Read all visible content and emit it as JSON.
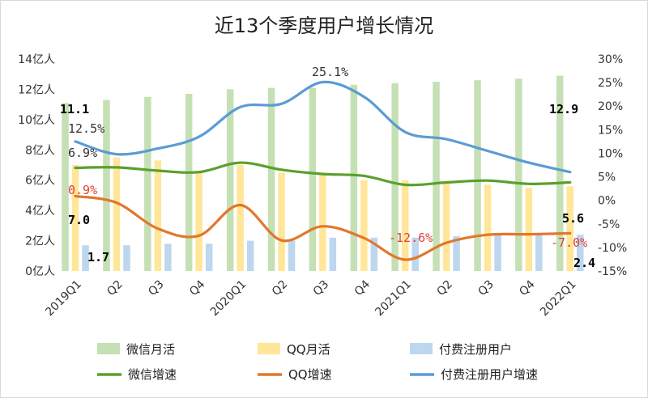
{
  "chart_data": {
    "type": "bar+line",
    "title": "近13个季度用户增长情况",
    "categories": [
      "2019Q1",
      "Q2",
      "Q3",
      "Q4",
      "2020Q1",
      "Q2",
      "Q3",
      "Q4",
      "2021Q1",
      "Q2",
      "Q3",
      "Q4",
      "2022Q1"
    ],
    "left_axis": {
      "ticks": [
        "0亿人",
        "2亿人",
        "4亿人",
        "6亿人",
        "8亿人",
        "10亿人",
        "12亿人",
        "14亿人"
      ],
      "min": 0,
      "max": 14
    },
    "right_axis": {
      "ticks": [
        "-15%",
        "-10%",
        "-5%",
        "0%",
        "5%",
        "10%",
        "15%",
        "20%",
        "25%",
        "30%"
      ],
      "min": -15,
      "max": 30
    },
    "bar_series": [
      {
        "name": "微信月活",
        "color": "#c5e0b4",
        "values": [
          11.1,
          11.3,
          11.5,
          11.7,
          12.0,
          12.1,
          12.1,
          12.3,
          12.4,
          12.5,
          12.6,
          12.7,
          12.9
        ]
      },
      {
        "name": "QQ月活",
        "color": "#ffe699",
        "values": [
          7.0,
          7.5,
          7.3,
          6.5,
          7.0,
          6.5,
          6.5,
          6.0,
          6.0,
          5.9,
          5.7,
          5.5,
          5.6
        ]
      },
      {
        "name": "付费注册用户",
        "color": "#bdd7ee",
        "values": [
          1.7,
          1.7,
          1.8,
          1.8,
          2.0,
          2.0,
          2.2,
          2.2,
          2.2,
          2.3,
          2.4,
          2.4,
          2.4
        ]
      }
    ],
    "line_series": [
      {
        "name": "微信增速",
        "color": "#5aa02c",
        "values": [
          6.9,
          7.0,
          6.3,
          6.0,
          8.0,
          6.5,
          5.6,
          5.2,
          3.3,
          3.8,
          4.2,
          3.5,
          3.8
        ]
      },
      {
        "name": "QQ增速",
        "color": "#e2772b",
        "values": [
          0.9,
          -0.5,
          -6.0,
          -7.5,
          -1.0,
          -8.5,
          -5.5,
          -8.0,
          -12.6,
          -9.0,
          -7.3,
          -7.2,
          -7.0
        ]
      },
      {
        "name": "付费注册用户增速",
        "color": "#5b9bd5",
        "values": [
          12.5,
          9.8,
          11.0,
          13.5,
          19.8,
          20.5,
          25.1,
          22.0,
          14.5,
          13.0,
          10.5,
          8.0,
          6.0
        ]
      }
    ],
    "data_labels": [
      {
        "text": "11.1",
        "color": "#000000"
      },
      {
        "text": "12.9",
        "color": "#000000"
      },
      {
        "text": "12.5%",
        "color": "#333333"
      },
      {
        "text": "6.9%",
        "color": "#333333"
      },
      {
        "text": "0.9%",
        "color": "#e0403a"
      },
      {
        "text": "7.0",
        "color": "#000000"
      },
      {
        "text": "1.7",
        "color": "#000000"
      },
      {
        "text": "25.1%",
        "color": "#333333"
      },
      {
        "text": "-12.6%",
        "color": "#e0403a"
      },
      {
        "text": "5.6",
        "color": "#000000"
      },
      {
        "text": "-7.0%",
        "color": "#e0403a"
      },
      {
        "text": "2.4",
        "color": "#000000"
      }
    ],
    "legend_position": "bottom",
    "grid": false
  }
}
